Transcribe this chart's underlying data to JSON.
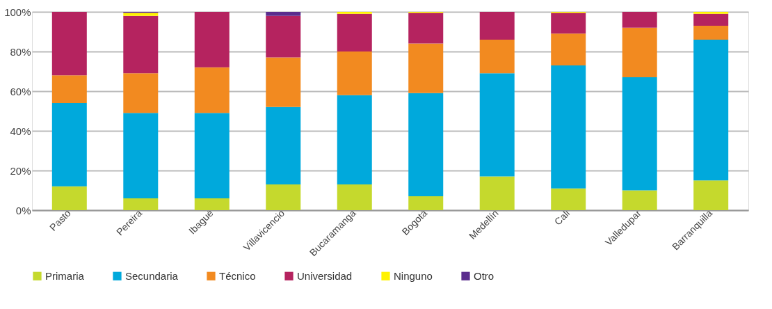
{
  "chart_data": {
    "type": "bar",
    "stacked": true,
    "categories": [
      "Pasto",
      "Pereira",
      "Ibagué",
      "Villavicencio",
      "Bucaramanga",
      "Bogotá",
      "Medellín",
      "Cali",
      "Valledupar",
      "Barranquilla"
    ],
    "series": [
      {
        "name": "Primaria",
        "color": "#c5d92d",
        "values": [
          12,
          6,
          6,
          13,
          13,
          7,
          17,
          11,
          10,
          15
        ]
      },
      {
        "name": "Secundaria",
        "color": "#00a9dc",
        "values": [
          42,
          43,
          43,
          39,
          45,
          52,
          52,
          62,
          57,
          71
        ]
      },
      {
        "name": "Técnico",
        "color": "#f28a20",
        "values": [
          14,
          20,
          23,
          25,
          22,
          25,
          17,
          16,
          25,
          7
        ]
      },
      {
        "name": "Universidad",
        "color": "#b5235f",
        "values": [
          32,
          29,
          28,
          21,
          19,
          15.5,
          14,
          10.5,
          8,
          6
        ]
      },
      {
        "name": "Ninguno",
        "color": "#fff200",
        "values": [
          0,
          1.5,
          0,
          0,
          1,
          0.5,
          0,
          0.5,
          0,
          1
        ]
      },
      {
        "name": "Otro",
        "color": "#5b2d8e",
        "values": [
          0,
          0.5,
          0,
          2,
          0,
          0,
          0,
          0,
          0,
          0
        ]
      }
    ],
    "ylim": [
      0,
      100
    ],
    "yticks": [
      {
        "value": 0,
        "label": "0%"
      },
      {
        "value": 20,
        "label": "20%"
      },
      {
        "value": 40,
        "label": "40%"
      },
      {
        "value": 60,
        "label": "60%"
      },
      {
        "value": 80,
        "label": "80%"
      },
      {
        "value": 100,
        "label": "100%"
      }
    ],
    "grid": "y",
    "legend": "bottom"
  }
}
